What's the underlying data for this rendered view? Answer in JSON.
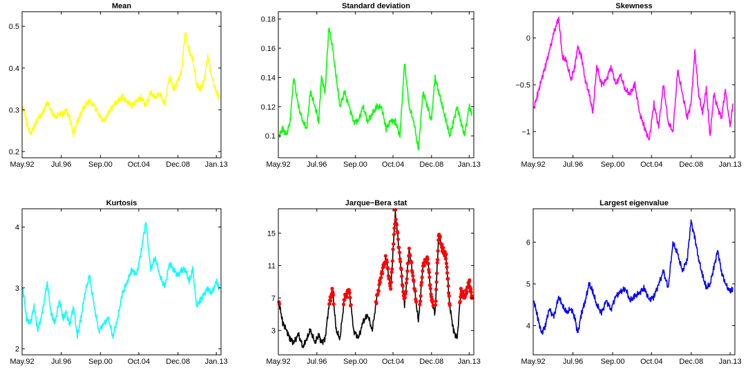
{
  "chart_data": [
    {
      "type": "line",
      "title": "Mean",
      "color": "#ffff00",
      "xlim": [
        1992.33,
        2013.5
      ],
      "ylim": [
        0.185,
        0.535
      ],
      "x_ticks": [
        {
          "label": "May.92",
          "value": 1992.33
        },
        {
          "label": "Jul.96",
          "value": 1996.5
        },
        {
          "label": "Sep.00",
          "value": 2000.67
        },
        {
          "label": "Oct.04",
          "value": 2004.75
        },
        {
          "label": "Dec.08",
          "value": 2008.92
        },
        {
          "label": "Jan.13",
          "value": 2013.0
        }
      ],
      "y_ticks": [
        {
          "label": "0.2",
          "value": 0.2
        },
        {
          "label": "0.3",
          "value": 0.3
        },
        {
          "label": "0.4",
          "value": 0.4
        },
        {
          "label": "0.5",
          "value": 0.5
        }
      ],
      "x": [
        1992.4,
        1992.8,
        1993.2,
        1993.6,
        1994.0,
        1994.5,
        1995.0,
        1995.4,
        1995.8,
        1996.3,
        1996.7,
        1997.0,
        1997.4,
        1997.8,
        1998.2,
        1998.6,
        1999.0,
        1999.5,
        2000.0,
        2000.5,
        2001.0,
        2001.5,
        2002.0,
        2002.5,
        2003.0,
        2003.5,
        2004.0,
        2004.5,
        2005.0,
        2005.5,
        2006.0,
        2006.5,
        2007.0,
        2007.5,
        2008.0,
        2008.5,
        2008.9,
        2009.3,
        2009.7,
        2010.1,
        2010.5,
        2010.9,
        2011.3,
        2011.7,
        2012.1,
        2012.5,
        2013.0,
        2013.3
      ],
      "values": [
        0.31,
        0.27,
        0.24,
        0.26,
        0.28,
        0.29,
        0.32,
        0.3,
        0.28,
        0.29,
        0.29,
        0.3,
        0.28,
        0.24,
        0.27,
        0.29,
        0.31,
        0.32,
        0.31,
        0.29,
        0.27,
        0.29,
        0.31,
        0.32,
        0.33,
        0.32,
        0.31,
        0.32,
        0.33,
        0.31,
        0.34,
        0.33,
        0.34,
        0.31,
        0.38,
        0.35,
        0.37,
        0.39,
        0.49,
        0.44,
        0.42,
        0.36,
        0.35,
        0.37,
        0.43,
        0.38,
        0.34,
        0.33
      ]
    },
    {
      "type": "line",
      "title": "Standard deviation",
      "color": "#00ff00",
      "xlim": [
        1992.33,
        2013.5
      ],
      "ylim": [
        0.085,
        0.185
      ],
      "x_ticks": [
        {
          "label": "May.92",
          "value": 1992.33
        },
        {
          "label": "Jul.96",
          "value": 1996.5
        },
        {
          "label": "Sep.00",
          "value": 2000.67
        },
        {
          "label": "Oct.04",
          "value": 2004.75
        },
        {
          "label": "Dec.08",
          "value": 2008.92
        },
        {
          "label": "Jan.13",
          "value": 2013.0
        }
      ],
      "y_ticks": [
        {
          "label": "0.1",
          "value": 0.1
        },
        {
          "label": "0.12",
          "value": 0.12
        },
        {
          "label": "0.14",
          "value": 0.14
        },
        {
          "label": "0.16",
          "value": 0.16
        },
        {
          "label": "0.18",
          "value": 0.18
        }
      ],
      "x": [
        1992.4,
        1992.8,
        1993.2,
        1993.6,
        1994.0,
        1994.5,
        1995.0,
        1995.4,
        1995.8,
        1996.3,
        1996.7,
        1997.0,
        1997.4,
        1997.8,
        1998.2,
        1998.6,
        1999.0,
        1999.5,
        2000.0,
        2000.5,
        2001.0,
        2001.5,
        2002.0,
        2002.5,
        2003.0,
        2003.5,
        2004.0,
        2004.5,
        2005.0,
        2005.5,
        2006.0,
        2006.5,
        2007.0,
        2007.5,
        2008.0,
        2008.5,
        2008.9,
        2009.3,
        2009.7,
        2010.1,
        2010.5,
        2010.9,
        2011.3,
        2011.7,
        2012.1,
        2012.5,
        2013.0,
        2013.3
      ],
      "values": [
        0.1,
        0.105,
        0.1,
        0.11,
        0.14,
        0.12,
        0.11,
        0.105,
        0.13,
        0.12,
        0.11,
        0.14,
        0.13,
        0.175,
        0.16,
        0.14,
        0.12,
        0.13,
        0.12,
        0.11,
        0.11,
        0.12,
        0.11,
        0.115,
        0.12,
        0.12,
        0.105,
        0.11,
        0.11,
        0.1,
        0.15,
        0.12,
        0.11,
        0.09,
        0.13,
        0.12,
        0.11,
        0.14,
        0.13,
        0.12,
        0.11,
        0.1,
        0.11,
        0.12,
        0.11,
        0.1,
        0.12,
        0.115
      ]
    },
    {
      "type": "line",
      "title": "Skewness",
      "color": "#ff00ff",
      "xlim": [
        1992.33,
        2013.5
      ],
      "ylim": [
        -1.28,
        0.28
      ],
      "x_ticks": [
        {
          "label": "May.92",
          "value": 1992.33
        },
        {
          "label": "Jul.96",
          "value": 1996.5
        },
        {
          "label": "Sep.00",
          "value": 2000.67
        },
        {
          "label": "Oct.04",
          "value": 2004.75
        },
        {
          "label": "Dec.08",
          "value": 2008.92
        },
        {
          "label": "Jan.13",
          "value": 2013.0
        }
      ],
      "y_ticks": [
        {
          "label": "−1",
          "value": -1
        },
        {
          "label": "−0.5",
          "value": -0.5
        },
        {
          "label": "0",
          "value": 0
        }
      ],
      "x": [
        1992.4,
        1992.8,
        1993.2,
        1993.6,
        1994.0,
        1994.5,
        1995.0,
        1995.4,
        1995.8,
        1996.3,
        1996.7,
        1997.0,
        1997.4,
        1997.8,
        1998.2,
        1998.6,
        1999.0,
        1999.5,
        2000.0,
        2000.5,
        2001.0,
        2001.5,
        2002.0,
        2002.5,
        2003.0,
        2003.5,
        2004.0,
        2004.5,
        2005.0,
        2005.5,
        2006.0,
        2006.5,
        2007.0,
        2007.5,
        2008.0,
        2008.5,
        2008.9,
        2009.3,
        2009.7,
        2010.1,
        2010.5,
        2010.9,
        2011.3,
        2011.7,
        2012.1,
        2012.5,
        2013.0,
        2013.3
      ],
      "values": [
        -0.75,
        -0.6,
        -0.45,
        -0.3,
        -0.15,
        0.05,
        0.22,
        -0.2,
        -0.25,
        -0.45,
        -0.3,
        -0.1,
        -0.2,
        -0.45,
        -0.6,
        -0.8,
        -0.3,
        -0.5,
        -0.45,
        -0.3,
        -0.5,
        -0.4,
        -0.55,
        -0.6,
        -0.5,
        -0.8,
        -0.95,
        -1.1,
        -0.7,
        -0.95,
        -0.5,
        -0.9,
        -1.0,
        -0.35,
        -0.6,
        -0.85,
        -0.7,
        -0.15,
        -0.6,
        -0.8,
        -0.55,
        -1.05,
        -0.6,
        -0.75,
        -0.85,
        -0.55,
        -0.95,
        -0.7
      ]
    },
    {
      "type": "line",
      "title": "Kurtosis",
      "color": "#00ffff",
      "xlim": [
        1992.33,
        2013.5
      ],
      "ylim": [
        1.9,
        4.3
      ],
      "x_ticks": [
        {
          "label": "May.92",
          "value": 1992.33
        },
        {
          "label": "Jul.96",
          "value": 1996.5
        },
        {
          "label": "Sep.00",
          "value": 2000.67
        },
        {
          "label": "Oct.04",
          "value": 2004.75
        },
        {
          "label": "Dec.08",
          "value": 2008.92
        },
        {
          "label": "Jan.13",
          "value": 2013.0
        }
      ],
      "y_ticks": [
        {
          "label": "2",
          "value": 2
        },
        {
          "label": "3",
          "value": 3
        },
        {
          "label": "4",
          "value": 4
        }
      ],
      "x": [
        1992.4,
        1992.8,
        1993.2,
        1993.6,
        1994.0,
        1994.5,
        1995.0,
        1995.4,
        1995.8,
        1996.3,
        1996.7,
        1997.0,
        1997.4,
        1997.8,
        1998.2,
        1998.6,
        1999.0,
        1999.5,
        2000.0,
        2000.5,
        2001.0,
        2001.5,
        2002.0,
        2002.5,
        2003.0,
        2003.5,
        2004.0,
        2004.5,
        2005.0,
        2005.5,
        2006.0,
        2006.5,
        2007.0,
        2007.5,
        2008.0,
        2008.5,
        2008.9,
        2009.3,
        2009.7,
        2010.1,
        2010.5,
        2010.9,
        2011.3,
        2011.7,
        2012.1,
        2012.5,
        2013.0,
        2013.3
      ],
      "values": [
        3.0,
        2.5,
        2.4,
        2.7,
        2.3,
        2.6,
        3.1,
        2.6,
        2.4,
        2.8,
        2.5,
        2.6,
        2.4,
        2.7,
        2.2,
        2.5,
        2.9,
        3.2,
        2.7,
        2.3,
        2.4,
        2.5,
        2.2,
        2.5,
        2.9,
        3.1,
        3.3,
        3.2,
        3.6,
        4.1,
        3.3,
        3.5,
        3.2,
        3.0,
        3.4,
        3.3,
        3.2,
        3.3,
        3.3,
        3.1,
        3.3,
        2.7,
        2.8,
        2.9,
        3.0,
        2.9,
        3.1,
        3.0
      ]
    },
    {
      "type": "line",
      "title": "Jarque−Bera stat",
      "color": "#000000",
      "marker_color": "#ff0000",
      "xlim": [
        1992.33,
        2013.5
      ],
      "ylim": [
        0.0,
        18.0
      ],
      "x_ticks": [
        {
          "label": "May.92",
          "value": 1992.33
        },
        {
          "label": "Jul.96",
          "value": 1996.5
        },
        {
          "label": "Sep.00",
          "value": 2000.67
        },
        {
          "label": "Oct.04",
          "value": 2004.75
        },
        {
          "label": "Dec.08",
          "value": 2008.92
        },
        {
          "label": "Jan.13",
          "value": 2013.0
        }
      ],
      "y_ticks": [
        {
          "label": "3",
          "value": 3
        },
        {
          "label": "7",
          "value": 7
        },
        {
          "label": "11",
          "value": 11
        },
        {
          "label": "15",
          "value": 15
        }
      ],
      "threshold": 5.99,
      "x": [
        1992.4,
        1992.8,
        1993.2,
        1993.6,
        1994.0,
        1994.5,
        1995.0,
        1995.4,
        1995.8,
        1996.3,
        1996.7,
        1997.0,
        1997.4,
        1997.8,
        1998.2,
        1998.6,
        1999.0,
        1999.5,
        2000.0,
        2000.5,
        2001.0,
        2001.5,
        2002.0,
        2002.5,
        2003.0,
        2003.5,
        2004.0,
        2004.5,
        2005.0,
        2005.5,
        2006.0,
        2006.5,
        2007.0,
        2007.5,
        2008.0,
        2008.5,
        2008.9,
        2009.3,
        2009.7,
        2010.1,
        2010.5,
        2010.9,
        2011.3,
        2011.7,
        2012.1,
        2012.5,
        2013.0,
        2013.3
      ],
      "values": [
        6.5,
        4.0,
        3.0,
        2.0,
        1.5,
        2.5,
        1.0,
        2.0,
        3.0,
        1.5,
        2.5,
        1.5,
        2.0,
        6.0,
        8.0,
        3.0,
        2.0,
        7.0,
        8.0,
        3.0,
        2.0,
        4.0,
        5.0,
        3.0,
        7.0,
        10.0,
        12.0,
        8.0,
        17.5,
        12.0,
        6.0,
        13.0,
        9.0,
        4.0,
        11.0,
        12.0,
        7.0,
        5.0,
        15.0,
        13.0,
        12.0,
        6.0,
        3.0,
        2.0,
        8.0,
        7.0,
        9.0,
        7.0
      ]
    },
    {
      "type": "line",
      "title": "Largest eigenvalue",
      "color": "#0000ff",
      "xlim": [
        1992.33,
        2013.5
      ],
      "ylim": [
        3.3,
        6.8
      ],
      "x_ticks": [
        {
          "label": "May.92",
          "value": 1992.33
        },
        {
          "label": "Jul.96",
          "value": 1996.5
        },
        {
          "label": "Sep.00",
          "value": 2000.67
        },
        {
          "label": "Oct.04",
          "value": 2004.75
        },
        {
          "label": "Dec.08",
          "value": 2008.92
        },
        {
          "label": "Jan.13",
          "value": 2013.0
        }
      ],
      "y_ticks": [
        {
          "label": "4",
          "value": 4
        },
        {
          "label": "5",
          "value": 5
        },
        {
          "label": "6",
          "value": 6
        }
      ],
      "x": [
        1992.4,
        1992.8,
        1993.2,
        1993.6,
        1994.0,
        1994.5,
        1995.0,
        1995.4,
        1995.8,
        1996.3,
        1996.7,
        1997.0,
        1997.4,
        1997.8,
        1998.2,
        1998.6,
        1999.0,
        1999.5,
        2000.0,
        2000.5,
        2001.0,
        2001.5,
        2002.0,
        2002.5,
        2003.0,
        2003.5,
        2004.0,
        2004.5,
        2005.0,
        2005.5,
        2006.0,
        2006.5,
        2007.0,
        2007.5,
        2008.0,
        2008.5,
        2008.9,
        2009.3,
        2009.7,
        2010.1,
        2010.5,
        2010.9,
        2011.3,
        2011.7,
        2012.1,
        2012.5,
        2013.0,
        2013.3
      ],
      "values": [
        4.6,
        4.2,
        3.8,
        4.0,
        4.4,
        4.2,
        4.7,
        4.5,
        4.3,
        4.4,
        4.2,
        3.8,
        4.3,
        4.6,
        5.0,
        4.8,
        4.5,
        4.3,
        4.6,
        4.4,
        4.7,
        4.8,
        4.9,
        4.6,
        4.7,
        4.8,
        4.9,
        4.6,
        4.7,
        5.0,
        5.3,
        4.9,
        6.0,
        5.7,
        5.3,
        5.6,
        6.5,
        6.1,
        5.6,
        5.2,
        4.9,
        5.0,
        5.4,
        5.8,
        5.3,
        5.0,
        4.8,
        4.9
      ]
    }
  ]
}
